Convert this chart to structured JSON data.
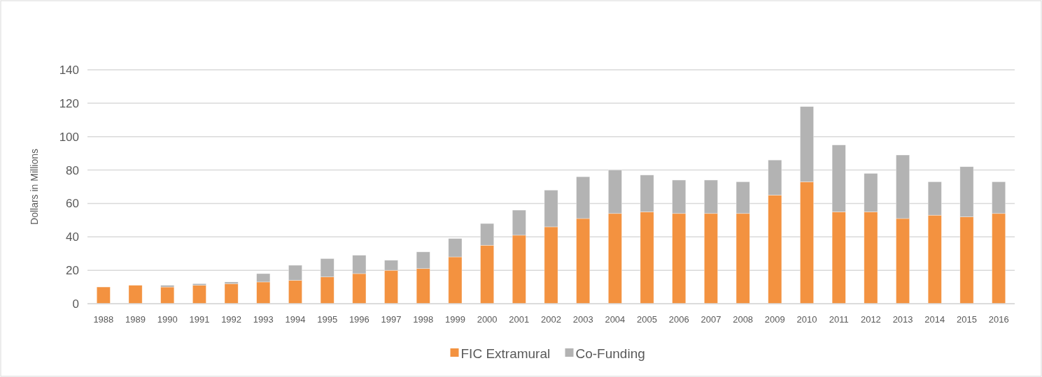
{
  "chart_data": {
    "type": "bar",
    "stacked": true,
    "ylabel": "Dollars in Millions",
    "categories": [
      "1988",
      "1989",
      "1990",
      "1991",
      "1992",
      "1993",
      "1994",
      "1995",
      "1996",
      "1997",
      "1998",
      "1999",
      "2000",
      "2001",
      "2002",
      "2003",
      "2004",
      "2005",
      "2006",
      "2007",
      "2008",
      "2009",
      "2010",
      "2011",
      "2012",
      "2013",
      "2014",
      "2015",
      "2016"
    ],
    "series": [
      {
        "name": "FIC Extramural",
        "color": "#f39240",
        "values": [
          10,
          11,
          10,
          11,
          12,
          13,
          14,
          16,
          18,
          20,
          21,
          28,
          35,
          41,
          46,
          51,
          54,
          55,
          54,
          54,
          54,
          65,
          73,
          55,
          55,
          51,
          53,
          52,
          54
        ]
      },
      {
        "name": "Co-Funding",
        "color": "#b3b3b3",
        "values": [
          0,
          0,
          1,
          1,
          1,
          5,
          9,
          11,
          11,
          6,
          10,
          11,
          13,
          15,
          22,
          25,
          26,
          22,
          20,
          20,
          19,
          21,
          45,
          40,
          23,
          38,
          20,
          30,
          19
        ]
      }
    ],
    "ylim": [
      0,
      140
    ],
    "yticks": [
      0,
      20,
      40,
      60,
      80,
      100,
      120,
      140
    ],
    "grid": "y",
    "legend": "bottom"
  }
}
